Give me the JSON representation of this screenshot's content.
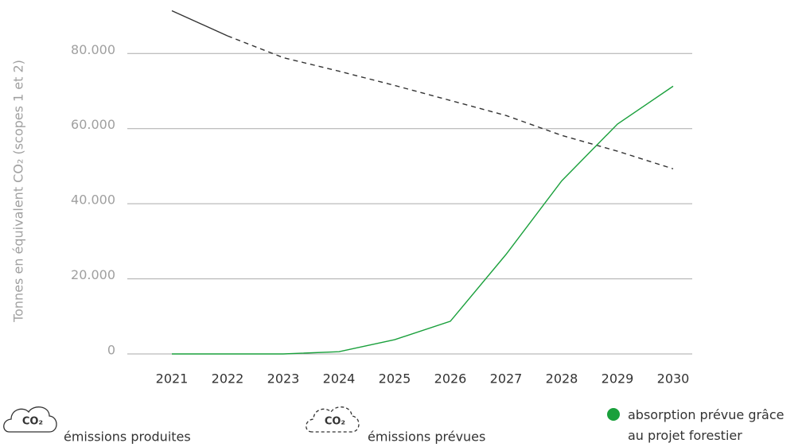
{
  "chart_data": {
    "type": "line",
    "y_label": "Tonnes en équivalent CO₂ (scopes 1 et 2)",
    "icon_label": "CO₂",
    "categories": [
      "2021",
      "2022",
      "2023",
      "2024",
      "2025",
      "2026",
      "2027",
      "2028",
      "2029",
      "2030"
    ],
    "series": [
      {
        "name": "émissions produites",
        "color": "#333333",
        "dash": false,
        "values": [
          91400,
          84700,
          null,
          null,
          null,
          null,
          null,
          null,
          null,
          null
        ]
      },
      {
        "name": "émissions prévues",
        "color": "#333333",
        "dash": true,
        "values": [
          null,
          84700,
          78900,
          75300,
          71500,
          67500,
          63500,
          58200,
          54000,
          49300
        ]
      },
      {
        "name": "absorption prévue grâce au projet forestier",
        "color": "#1aa03c",
        "dash": false,
        "values": [
          0,
          0,
          0,
          600,
          3800,
          8700,
          26500,
          46100,
          61200,
          71300
        ]
      }
    ],
    "ylim": [
      0,
      91500
    ],
    "yticks": [
      0,
      {
        "value": 20000,
        "label": "20.000"
      },
      {
        "value": 40000,
        "label": "40.000"
      },
      {
        "value": 60000,
        "label": "60.000"
      },
      {
        "value": 80000,
        "label": "80.000"
      }
    ],
    "grid": true
  }
}
